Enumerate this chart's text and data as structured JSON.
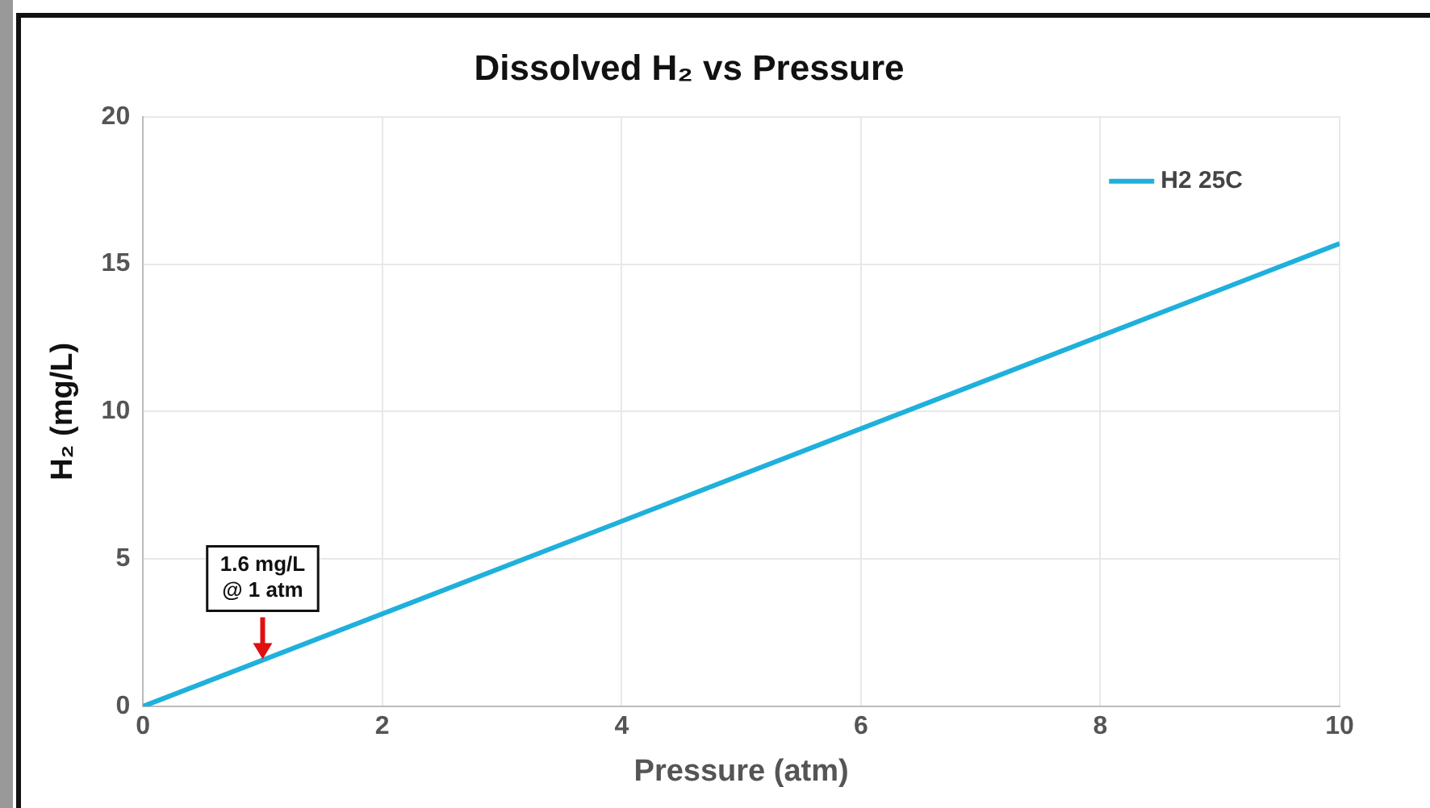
{
  "chart_data": {
    "type": "line",
    "title": "Dissolved H₂ vs Pressure",
    "xlabel": "Pressure (atm)",
    "ylabel": "H₂ (mg/L)",
    "x": [
      0,
      10
    ],
    "series": [
      {
        "name": "H2 25C",
        "color": "#1fb0dc",
        "values": [
          0,
          15.7
        ]
      }
    ],
    "xlim": [
      0,
      10
    ],
    "xticks": [
      0,
      2,
      4,
      6,
      8,
      10
    ],
    "ylim": [
      0,
      20
    ],
    "yticks": [
      0,
      5,
      10,
      15,
      20
    ],
    "annotations": [
      {
        "text": "1.6 mg/L\n@ 1 atm",
        "x": 1,
        "y": 1.6
      }
    ],
    "grid": true,
    "legend": "top right",
    "marker": "none",
    "line_style": "solid"
  }
}
